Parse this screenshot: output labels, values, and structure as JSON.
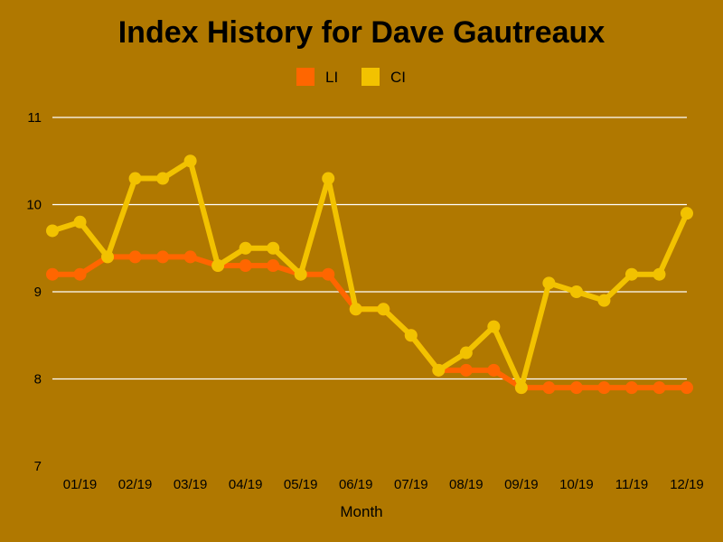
{
  "chart_data": {
    "type": "line",
    "title": "Index History for Dave Gautreaux",
    "xlabel": "Month",
    "ylabel": "",
    "ylim": [
      7,
      11
    ],
    "yticks": [
      "7",
      "8",
      "9",
      "10",
      "11"
    ],
    "grid": true,
    "legend_position": "top-center",
    "x_tick_labels": [
      "01/19",
      "02/19",
      "03/19",
      "04/19",
      "05/19",
      "06/19",
      "07/19",
      "08/19",
      "09/19",
      "10/19",
      "11/19",
      "12/19"
    ],
    "series": [
      {
        "name": "LI",
        "color": "#ff6600",
        "values": [
          9.2,
          9.2,
          9.4,
          9.4,
          9.4,
          9.4,
          9.3,
          9.3,
          9.3,
          9.2,
          9.2,
          8.8,
          8.8,
          8.5,
          8.1,
          8.1,
          8.1,
          7.9,
          7.9,
          7.9,
          7.9,
          7.9,
          7.9,
          7.9
        ]
      },
      {
        "name": "CI",
        "color": "#f2c200",
        "values": [
          9.7,
          9.8,
          9.4,
          10.3,
          10.3,
          10.5,
          9.3,
          9.5,
          9.5,
          9.2,
          10.3,
          8.8,
          8.8,
          8.5,
          8.1,
          8.3,
          8.6,
          7.9,
          9.1,
          9.0,
          8.9,
          9.2,
          9.2,
          9.9
        ]
      }
    ]
  }
}
